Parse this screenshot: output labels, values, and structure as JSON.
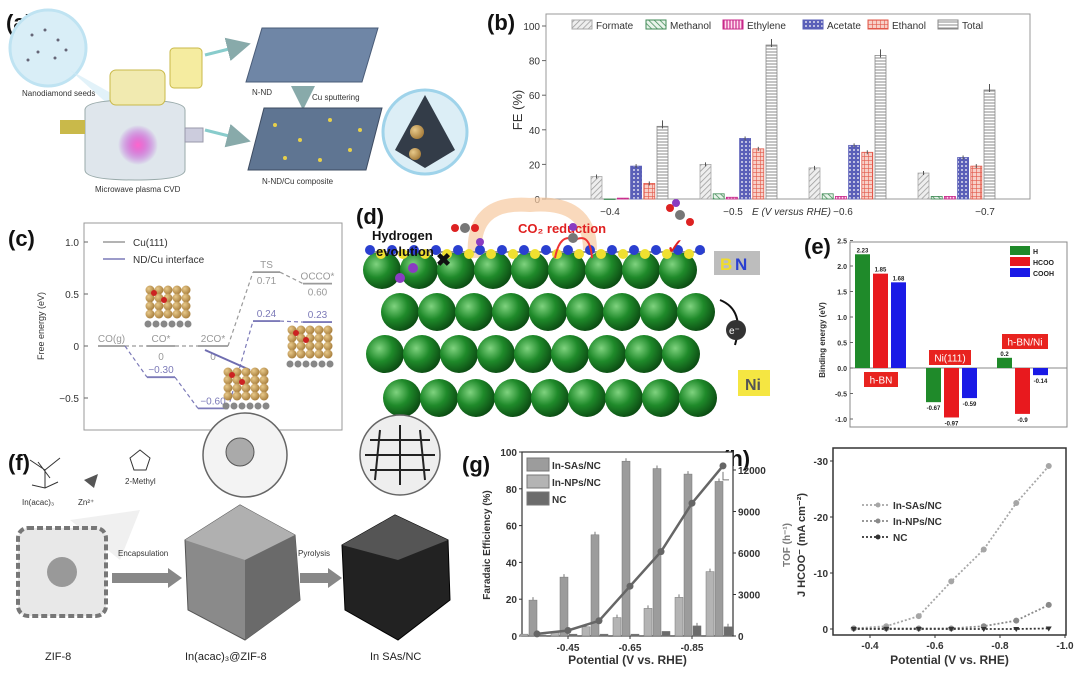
{
  "panels": {
    "a": {
      "label": "(a)",
      "seeds": "Nanodiamond seeds",
      "cvd": "Microwave plasma CVD",
      "nnd": "N-ND",
      "sputter": "Cu sputtering",
      "composite": "N-ND/Cu composite"
    },
    "b": {
      "label": "(b)"
    },
    "c": {
      "label": "(c)"
    },
    "d": {
      "label": "(d)",
      "her_line1": "Hydrogen",
      "her_line2": "evolution",
      "co2": "CO₂ reduction",
      "b": "B",
      "n": "N",
      "ni": "Ni",
      "electron": "e⁻"
    },
    "e": {
      "label": "(e)"
    },
    "f": {
      "label": "(f)",
      "inacac": "In(acac)₃",
      "zn": "Zn²⁺",
      "methyl": "2-Methyl",
      "encap": "Encapsulation",
      "pyro": "Pyrolysis",
      "zif8": "ZIF-8",
      "inzif": "In(acac)₃@ZIF-8",
      "insas": "In SAs/NC"
    },
    "g": {
      "label": "(g)"
    },
    "h": {
      "label": "(h)"
    }
  },
  "chart_data": [
    {
      "id": "b",
      "type": "bar",
      "categories": [
        "−0.4",
        "−0.5",
        "−0.6",
        "−0.7"
      ],
      "xlabel": "E (V versus RHE)",
      "ylabel": "FE (%)",
      "ylim": [
        0,
        100
      ],
      "yticks": [
        0,
        20,
        40,
        60,
        80,
        100
      ],
      "legend": "top",
      "series": [
        {
          "name": "Formate",
          "values": [
            13,
            20,
            18,
            15
          ],
          "color": "#a8a8a8"
        },
        {
          "name": "Methanol",
          "values": [
            0,
            3,
            3,
            1.5
          ],
          "color": "#3f8a55"
        },
        {
          "name": "Ethylene",
          "values": [
            0.5,
            1,
            1.5,
            1.5
          ],
          "color": "#c8288a"
        },
        {
          "name": "Acetate",
          "values": [
            19,
            35,
            31,
            24
          ],
          "color": "#5a5fb8"
        },
        {
          "name": "Ethanol",
          "values": [
            9,
            29,
            27,
            19
          ],
          "color": "#e2584a"
        },
        {
          "name": "Total",
          "values": [
            42,
            89,
            83,
            63
          ],
          "color": "#8a8a8a"
        }
      ]
    },
    {
      "id": "c",
      "type": "line",
      "ylabel": "Free energy (eV)",
      "ylim": [
        -0.7,
        1.1
      ],
      "yticks": [
        "1.0",
        "0.5",
        "0",
        "−0.5"
      ],
      "ytick_values": [
        1.0,
        0.5,
        0,
        -0.5
      ],
      "states": [
        "CO(g)",
        "CO*",
        "2CO*",
        "TS",
        "OCCO*"
      ],
      "series": [
        {
          "name": "Cu(111)",
          "values": [
            0,
            0,
            0,
            0.71,
            0.6
          ],
          "labels": [
            "",
            "0",
            "0",
            "0.71",
            "0.60"
          ],
          "color": "#9a9a9a"
        },
        {
          "name": "ND/Cu interface",
          "values": [
            0,
            -0.3,
            -0.6,
            0.24,
            0.23
          ],
          "labels": [
            "",
            "−0.30",
            "−0.60",
            "0.24",
            "0.23"
          ],
          "color": "#7c7ab8"
        }
      ]
    },
    {
      "id": "e",
      "type": "bar",
      "categories": [
        "h-BN",
        "Ni(111)",
        "h-BN/Ni"
      ],
      "ylabel": "Binding energy (eV)",
      "ylim": [
        -1.1,
        2.5
      ],
      "yticks": [
        "-1.0",
        "-0.5",
        "0.0",
        "0.5",
        "1.0",
        "1.5",
        "2.0",
        "2.5"
      ],
      "ytick_values": [
        -1,
        -0.5,
        0,
        0.5,
        1,
        1.5,
        2,
        2.5
      ],
      "legend": "top-right",
      "series": [
        {
          "name": "H",
          "values": [
            2.23,
            -0.67,
            0.2
          ],
          "labels": [
            "2.23",
            "-0.67",
            "0.2"
          ],
          "color": "#1f8a2a"
        },
        {
          "name": "HCOO",
          "values": [
            1.85,
            -0.97,
            -0.9
          ],
          "labels": [
            "1.85",
            "-0.97",
            "-0.9"
          ],
          "color": "#e8191e"
        },
        {
          "name": "COOH",
          "values": [
            1.68,
            -0.59,
            -0.14
          ],
          "labels": [
            "1.68",
            "-0.59",
            "-0.14"
          ],
          "color": "#1a1ae6"
        }
      ]
    },
    {
      "id": "g",
      "type": "bar",
      "x": [
        -0.35,
        -0.45,
        -0.55,
        -0.65,
        -0.75,
        -0.85,
        -0.95
      ],
      "xticks": [
        "-0.45",
        "-0.65",
        "-0.85"
      ],
      "xtick_values": [
        -0.45,
        -0.65,
        -0.85
      ],
      "xlabel": "Potential (V vs. RHE)",
      "ylabel": "Faradaic Efficiency (%)",
      "ylim": [
        0,
        100
      ],
      "yticks": [
        0,
        20,
        40,
        60,
        80,
        100
      ],
      "y2label": "TOF (h⁻¹)",
      "y2lim": [
        0,
        12500
      ],
      "y2ticks": [
        0,
        3000,
        6000,
        9000,
        12000
      ],
      "legend": "top-left",
      "series": [
        {
          "name": "In-SAs/NC",
          "values": [
            19.5,
            32,
            55,
            95,
            91,
            88,
            84
          ],
          "color": "#9c9c9c"
        },
        {
          "name": "In-NPs/NC",
          "values": [
            1,
            2,
            5,
            10,
            15,
            21,
            35
          ],
          "color": "#b4b4b4"
        },
        {
          "name": "NC",
          "values": [
            0.5,
            1,
            1,
            1,
            2.5,
            5.5,
            5
          ],
          "color": "#6c6c6c"
        }
      ],
      "tof": {
        "name": "TOF",
        "values": [
          150,
          400,
          1100,
          3600,
          6100,
          9600,
          12300
        ],
        "color": "#666666"
      }
    },
    {
      "id": "h",
      "type": "line",
      "x": [
        -0.35,
        -0.45,
        -0.55,
        -0.65,
        -0.75,
        -0.85,
        -0.95
      ],
      "xticks": [
        "-0.4",
        "-0.6",
        "-0.8",
        "-1.0"
      ],
      "xtick_values": [
        -0.4,
        -0.6,
        -0.8,
        -1.0
      ],
      "xlabel": "Potential (V vs. RHE)",
      "ylabel": "J HCOO⁻ (mA cm⁻²)",
      "ylim": [
        0,
        -31
      ],
      "yticks": [
        "0",
        "-10",
        "-20",
        "-30"
      ],
      "ytick_values": [
        0,
        -10,
        -20,
        -30
      ],
      "legend": "top-left",
      "series": [
        {
          "name": "In-SAs/NC",
          "values": [
            -0.1,
            -0.5,
            -2.3,
            -8.5,
            -14.2,
            -22.5,
            -29.1
          ],
          "color": "#a6a6a6"
        },
        {
          "name": "In-NPs/NC",
          "values": [
            -0.1,
            -0.1,
            -0.1,
            -0.1,
            -0.5,
            -1.5,
            -4.3
          ],
          "color": "#8a8a8a"
        },
        {
          "name": "NC",
          "values": [
            0,
            0,
            0,
            0,
            0,
            0,
            -0.1
          ],
          "color": "#333333"
        }
      ]
    }
  ]
}
